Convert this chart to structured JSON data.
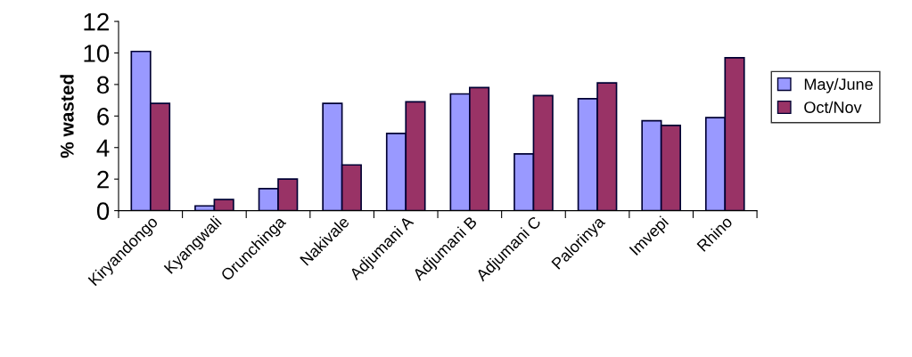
{
  "chart_data": {
    "type": "bar",
    "ylabel": "% wasted",
    "categories": [
      "Kiryandongo",
      "Kyangwali",
      "Orunchinga",
      "Nakivale",
      "Adjumani A",
      "Adjumani B",
      "Adjumani C",
      "Palorinya",
      "Imvepi",
      "Rhino"
    ],
    "series": [
      {
        "name": "May/June",
        "color": "#9999ff",
        "values": [
          10.1,
          0.3,
          1.4,
          6.8,
          4.9,
          7.4,
          3.6,
          7.1,
          5.7,
          5.9
        ]
      },
      {
        "name": "Oct/Nov",
        "color": "#993366",
        "values": [
          6.8,
          0.7,
          2.0,
          2.9,
          6.9,
          7.8,
          7.3,
          8.1,
          5.4,
          9.7
        ]
      }
    ],
    "ylim": [
      0,
      12
    ],
    "yticks": [
      0,
      2,
      4,
      6,
      8,
      10,
      12
    ],
    "grid": false,
    "legend": "right"
  }
}
